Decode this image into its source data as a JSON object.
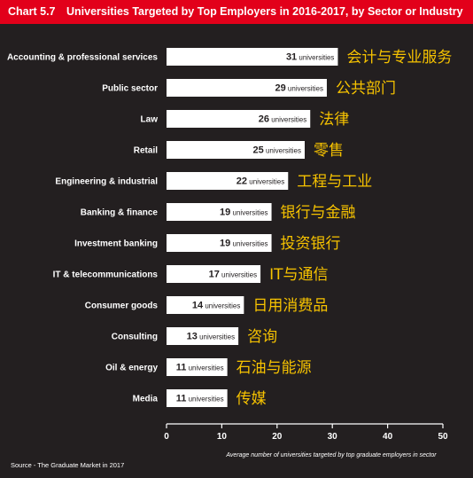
{
  "header": {
    "chart_number": "Chart 5.7",
    "title": "Universities Targeted by Top Employers in 2016-2017, by Sector or Industry"
  },
  "source": "Source - The Graduate Market in 2017",
  "colors": {
    "banner": "#e2001a",
    "background": "#231f20",
    "bar": "#ffffff",
    "chinese_label": "#f6c200"
  },
  "chart_data": {
    "type": "bar",
    "orientation": "horizontal",
    "categories": [
      "Accounting & professional services",
      "Public sector",
      "Law",
      "Retail",
      "Engineering & industrial",
      "Banking & finance",
      "Investment banking",
      "IT & telecommunications",
      "Consumer goods",
      "Consulting",
      "Oil & energy",
      "Media"
    ],
    "chinese_labels": [
      "会计与专业服务",
      "公共部门",
      "法律",
      "零售",
      "工程与工业",
      "银行与金融",
      "投资银行",
      "IT与通信",
      "日用消费品",
      "咨询",
      "石油与能源",
      "传媒"
    ],
    "values": [
      31,
      29,
      26,
      25,
      22,
      19,
      19,
      17,
      14,
      13,
      11,
      11
    ],
    "value_unit": "universities",
    "xlabel": "Average number of universities targeted by top graduate employers in sector",
    "xlim": [
      0,
      50
    ],
    "xticks": [
      0,
      10,
      20,
      30,
      40,
      50
    ],
    "grid": false,
    "legend": "none"
  }
}
